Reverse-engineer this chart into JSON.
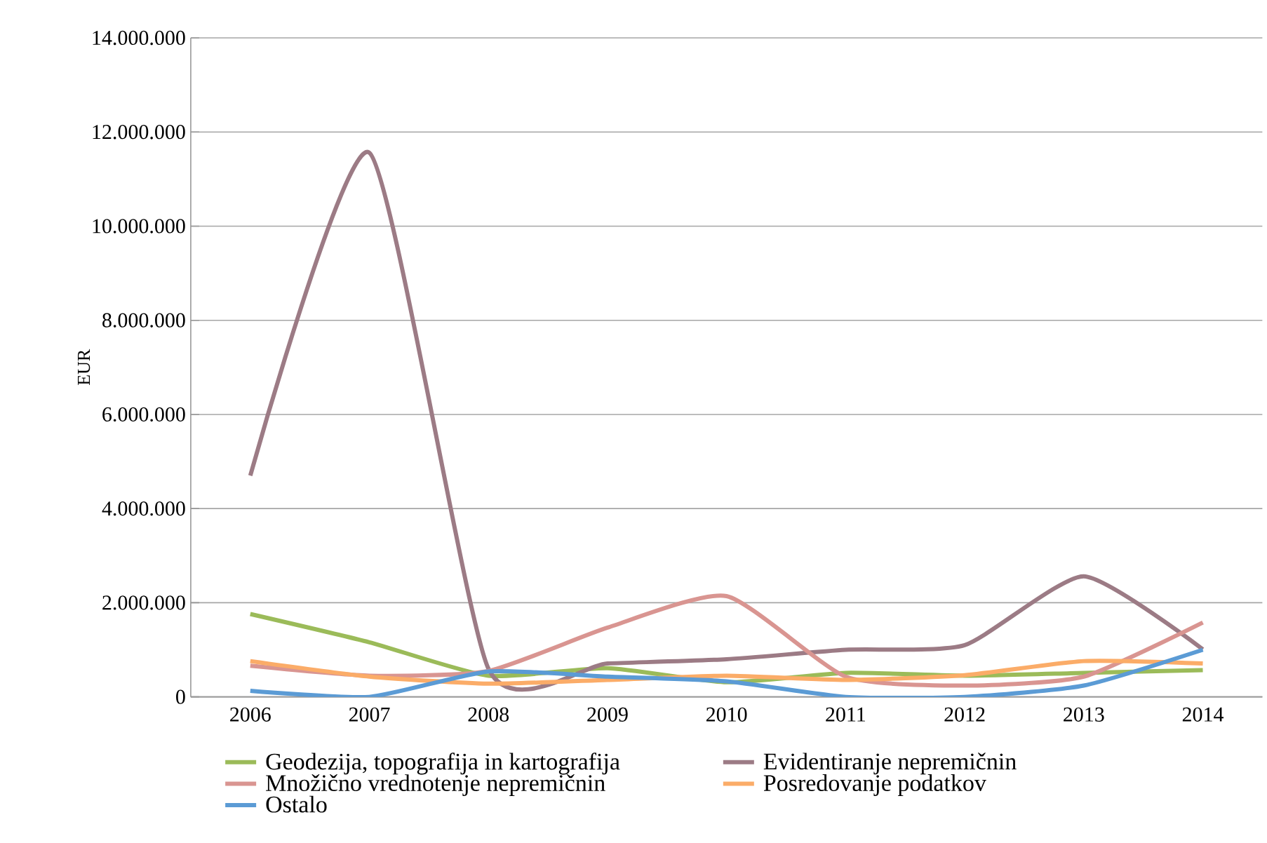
{
  "chart_data": {
    "type": "line",
    "ylabel": "EUR",
    "categories": [
      "2006",
      "2007",
      "2008",
      "2009",
      "2010",
      "2011",
      "2012",
      "2013",
      "2014"
    ],
    "ylim": [
      0,
      14000000
    ],
    "yticks": [
      0,
      {
        "value": 2000000,
        "label": "2.000.000"
      },
      {
        "value": 4000000,
        "label": "4.000.000"
      },
      {
        "value": 6000000,
        "label": "6.000.000"
      },
      {
        "value": 8000000,
        "label": "8.000.000"
      },
      {
        "value": 10000000,
        "label": "10.000.000"
      },
      {
        "value": 12000000,
        "label": "12.000.000"
      },
      {
        "value": 14000000,
        "label": "14.000.000"
      }
    ],
    "grid": "y",
    "legend": "bottom",
    "marker": "none",
    "line_style": "solid",
    "series": [
      {
        "name": "Geodezija, topografija in kartografija",
        "color": "#9bbb59",
        "values": [
          1760000,
          1160000,
          450000,
          610000,
          310000,
          510000,
          450000,
          510000,
          570000
        ]
      },
      {
        "name": "Evidentiranje nepremičnin",
        "color": "#9c7b85",
        "values": [
          4700000,
          11560000,
          600000,
          710000,
          800000,
          1000000,
          1100000,
          2560000,
          1010000
        ]
      },
      {
        "name": "Množično vrednotenje nepremičnin",
        "color": "#d99591",
        "values": [
          660000,
          450000,
          550000,
          1470000,
          2140000,
          430000,
          240000,
          430000,
          1580000
        ]
      },
      {
        "name": "Posredovanje podatkov",
        "color": "#fbac68",
        "values": [
          760000,
          430000,
          280000,
          360000,
          450000,
          360000,
          460000,
          760000,
          710000
        ]
      },
      {
        "name": "Ostalo",
        "color": "#5b9bd5",
        "values": [
          130000,
          0,
          540000,
          430000,
          330000,
          0,
          0,
          240000,
          1000000
        ]
      }
    ]
  }
}
